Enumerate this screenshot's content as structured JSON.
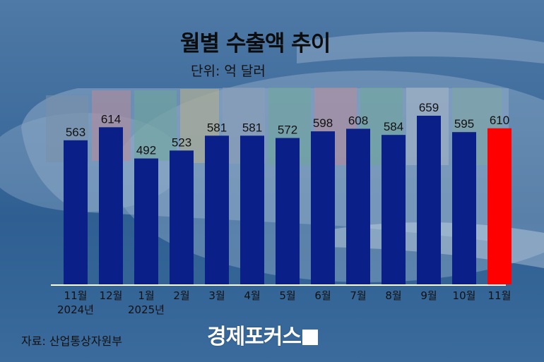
{
  "title": "월별 수출액 추이",
  "unit": "단위: 억 달러",
  "source": "자료: 산업통상자원부",
  "logo": "경제포커스",
  "colors": {
    "bar": "#0a1f87",
    "highlight": "#ff0000",
    "axis": "#ffffff",
    "text": "#111111"
  },
  "chart_data": {
    "type": "bar",
    "categories": [
      "11월",
      "12월",
      "1월",
      "2월",
      "3월",
      "4월",
      "5월",
      "6월",
      "7월",
      "8월",
      "9월",
      "10월",
      "11월"
    ],
    "category_sublabels": [
      "2024년",
      "",
      "2025년",
      "",
      "",
      "",
      "",
      "",
      "",
      "",
      "",
      "",
      ""
    ],
    "values": [
      563,
      614,
      492,
      523,
      581,
      581,
      572,
      598,
      608,
      584,
      659,
      595,
      610
    ],
    "data_labels": [
      "563",
      "614",
      "492",
      "523",
      "581",
      "581",
      "572",
      "598",
      "608",
      "584",
      "659",
      "595",
      "610"
    ],
    "highlight_index": 12,
    "title": "월별 수출액 추이",
    "ylabel": "단위: 억 달러",
    "ylim": [
      0,
      659
    ],
    "grid": false,
    "legend": "none"
  }
}
